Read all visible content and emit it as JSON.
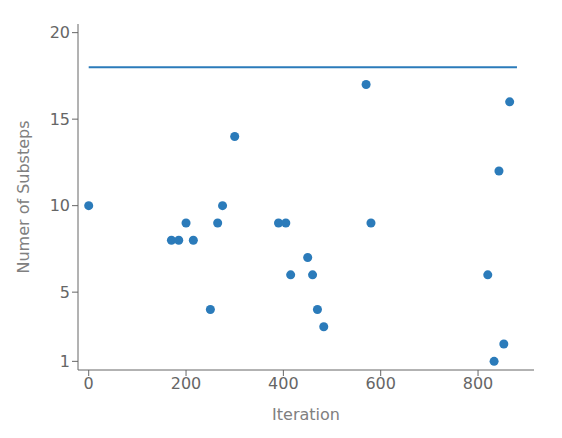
{
  "chart_data": {
    "type": "scatter",
    "xlabel": "Iteration",
    "ylabel": "Numer of Substeps",
    "xlim": [
      -22,
      915
    ],
    "ylim": [
      0.5,
      20.5
    ],
    "xticks": [
      0,
      200,
      400,
      600,
      800
    ],
    "yticks": [
      1,
      5,
      10,
      15,
      20
    ],
    "grid": false,
    "series": [
      {
        "type": "line",
        "color": "#2b7bba",
        "x": [
          0,
          880
        ],
        "values": [
          18,
          18
        ]
      },
      {
        "type": "scatter",
        "color": "#2b7bba",
        "x": [
          0,
          170,
          185,
          200,
          215,
          250,
          265,
          275,
          300,
          390,
          405,
          415,
          450,
          460,
          470,
          483,
          570,
          580,
          820,
          833,
          843,
          853,
          865
        ],
        "values": [
          10,
          8,
          8,
          9,
          8,
          4,
          9,
          10,
          14,
          9,
          9,
          6,
          7,
          6,
          4,
          3,
          17,
          9,
          6,
          1,
          12,
          2,
          16
        ]
      }
    ]
  }
}
